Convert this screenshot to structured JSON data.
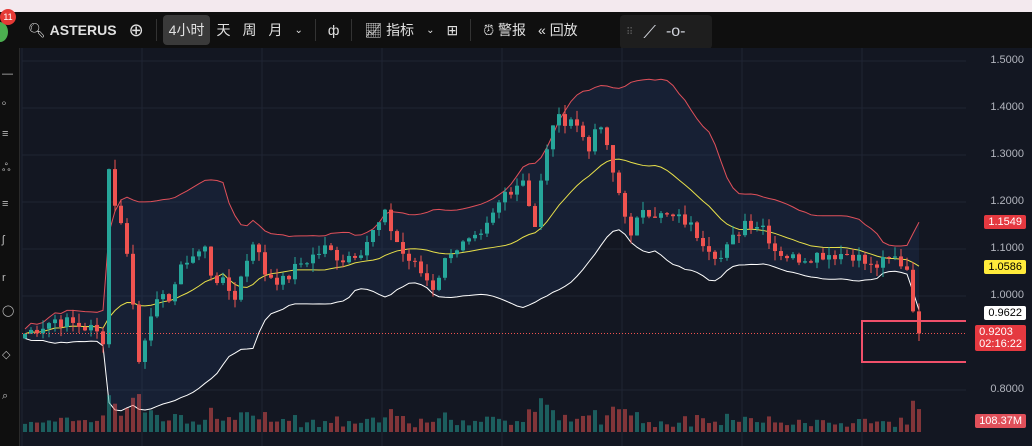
{
  "toolbar": {
    "notif_count": "11",
    "symbol": "ASTERUS",
    "intervals": [
      "4小时",
      "天",
      "周",
      "月"
    ],
    "indicators": "指标",
    "alert": "警报",
    "replay": "回放"
  },
  "axis": {
    "ticks": [
      "1.5000",
      "1.4000",
      "1.3000",
      "1.2000",
      "1.1000",
      "1.0000",
      "0.8000"
    ],
    "tags": {
      "upper_band": "1.1549",
      "basis": "1.0586",
      "lower_band": "0.9622",
      "last_price": "0.9203",
      "countdown": "02:16:22",
      "volume": "108.37M"
    }
  },
  "colors": {
    "up": "#26a69a",
    "down": "#ef5350",
    "upper": "#e0505a",
    "basis": "#e8e04a",
    "lower": "#ffffff",
    "bg": "#131722"
  },
  "chart_data": {
    "type": "candlestick",
    "symbol": "ASTERUS",
    "interval": "4小时",
    "ylim": [
      0.75,
      1.52
    ],
    "price_ticks": [
      1.5,
      1.4,
      1.3,
      1.2,
      1.1,
      1.0,
      0.8
    ],
    "indicator": "Bollinger Bands (20,2)",
    "close_keypoints": [
      [
        0,
        0.92
      ],
      [
        5,
        0.95
      ],
      [
        11,
        0.93
      ],
      [
        13,
        0.91
      ],
      [
        14,
        1.27
      ],
      [
        15,
        1.2
      ],
      [
        17,
        1.1
      ],
      [
        19,
        0.86
      ],
      [
        21,
        0.97
      ],
      [
        24,
        1.0
      ],
      [
        27,
        1.08
      ],
      [
        30,
        1.1
      ],
      [
        31,
        1.05
      ],
      [
        35,
        1.0
      ],
      [
        38,
        1.12
      ],
      [
        40,
        1.05
      ],
      [
        43,
        1.03
      ],
      [
        46,
        1.07
      ],
      [
        50,
        1.1
      ],
      [
        53,
        1.08
      ],
      [
        56,
        1.1
      ],
      [
        60,
        1.17
      ],
      [
        63,
        1.09
      ],
      [
        66,
        1.05
      ],
      [
        68,
        1.02
      ],
      [
        71,
        1.1
      ],
      [
        76,
        1.12
      ],
      [
        80,
        1.22
      ],
      [
        83,
        1.25
      ],
      [
        85,
        1.15
      ],
      [
        86,
        1.24
      ],
      [
        88,
        1.37
      ],
      [
        91,
        1.38
      ],
      [
        94,
        1.32
      ],
      [
        96,
        1.36
      ],
      [
        98,
        1.26
      ],
      [
        100,
        1.18
      ],
      [
        101,
        1.12
      ],
      [
        103,
        1.19
      ],
      [
        106,
        1.17
      ],
      [
        110,
        1.16
      ],
      [
        113,
        1.12
      ],
      [
        116,
        1.08
      ],
      [
        120,
        1.16
      ],
      [
        123,
        1.15
      ],
      [
        125,
        1.1
      ],
      [
        128,
        1.08
      ],
      [
        133,
        1.09
      ],
      [
        138,
        1.09
      ],
      [
        141,
        1.06
      ],
      [
        145,
        1.08
      ],
      [
        147,
        1.06
      ],
      [
        148,
        0.98
      ],
      [
        149,
        0.92
      ]
    ],
    "last_price": 0.9203,
    "upper_band": 1.1549,
    "basis": 1.0586,
    "lower_band": 0.9622,
    "volume_last": "108.37M"
  }
}
